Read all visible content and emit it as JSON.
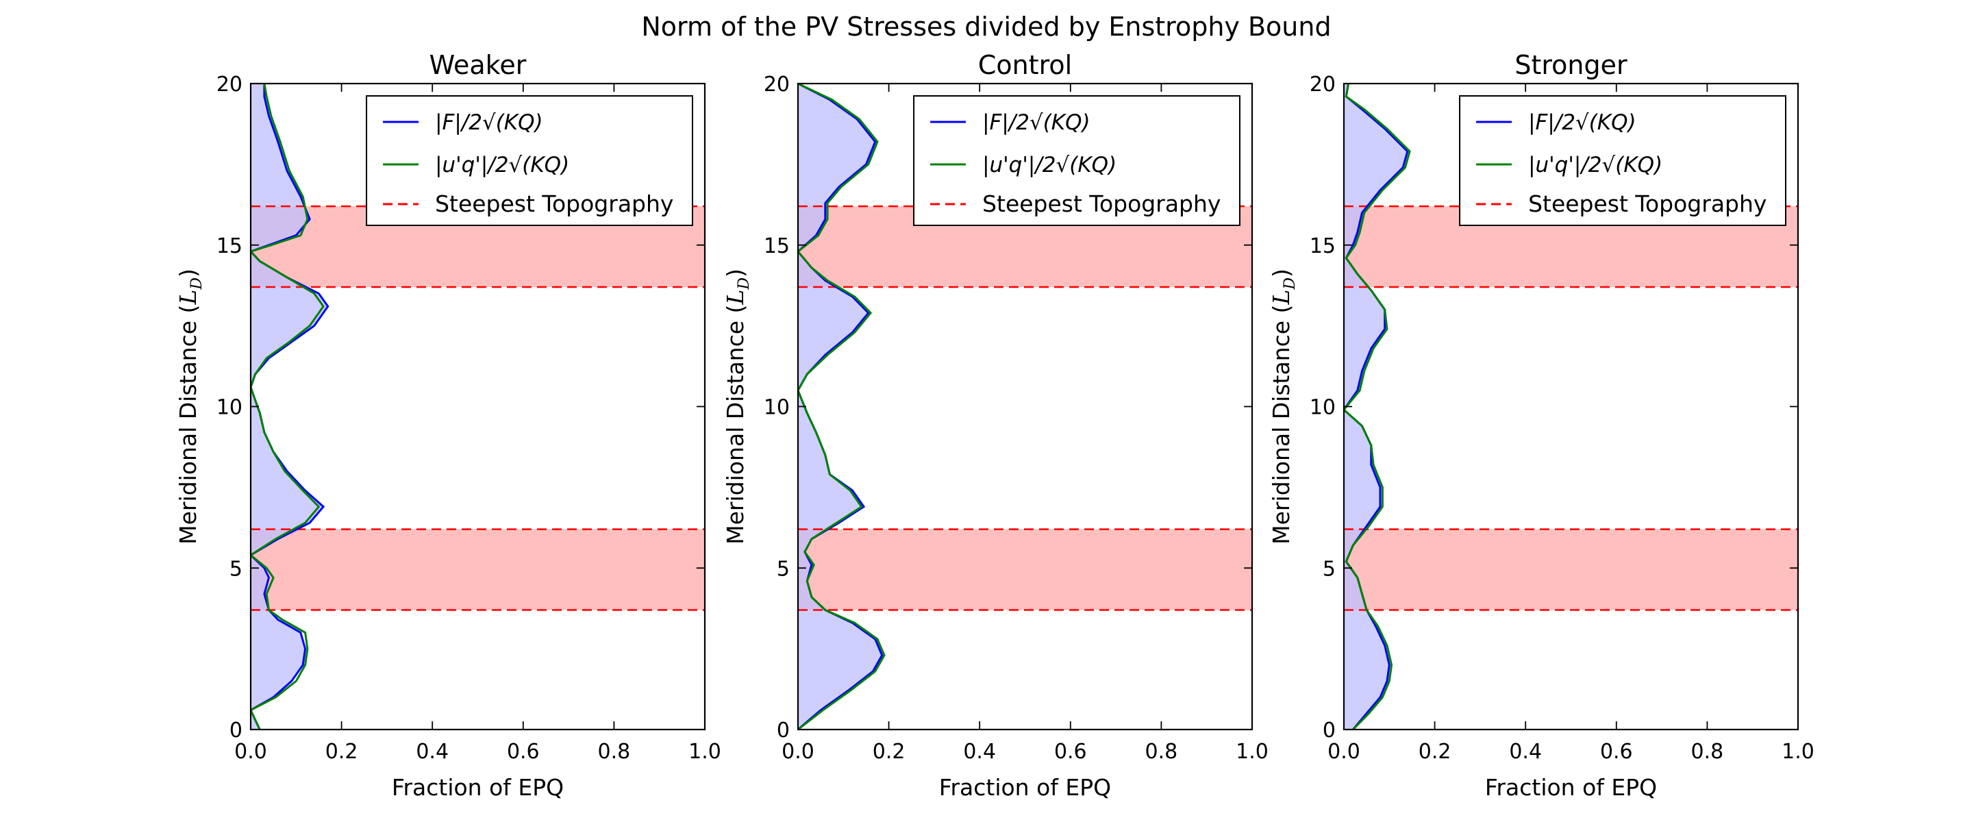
{
  "figure": {
    "suptitle": "Norm of the PV Stresses divided by Enstrophy Bound"
  },
  "colors": {
    "series_F": "#0000ff",
    "series_uq": "#008000",
    "fill_F": "#bfbfff",
    "band_fill": "#ffbfbf",
    "band_line": "#ff0000"
  },
  "chart_data": [
    {
      "type": "area",
      "title": "Weaker",
      "xlabel": "Fraction of EPQ",
      "ylabel": "Meridional Distance (L_D)",
      "ylabel_parts": {
        "main": "Meridional Distance (",
        "math": "L",
        "sub": "D",
        "close": ")"
      },
      "xlim": [
        0,
        1.0
      ],
      "ylim": [
        0,
        20
      ],
      "xticks": [
        "0.0",
        "0.2",
        "0.4",
        "0.6",
        "0.8",
        "1.0"
      ],
      "yticks": [
        "0",
        "5",
        "10",
        "15",
        "20"
      ],
      "legend": {
        "placement": "upper right",
        "entries": [
          "|F|/2√(KQ)",
          "|u'q'|/2√(KQ)",
          "Steepest Topography"
        ]
      },
      "bands": [
        [
          3.7,
          6.2
        ],
        [
          13.7,
          16.2
        ]
      ],
      "series": [
        {
          "name": "|F|/2√(KQ)",
          "points": [
            [
              0.02,
              0
            ],
            [
              0.01,
              0.3
            ],
            [
              0.0,
              0.6
            ],
            [
              0.05,
              1.0
            ],
            [
              0.09,
              1.5
            ],
            [
              0.115,
              2.0
            ],
            [
              0.12,
              2.5
            ],
            [
              0.11,
              3.0
            ],
            [
              0.06,
              3.4
            ],
            [
              0.04,
              3.7
            ],
            [
              0.03,
              4.2
            ],
            [
              0.04,
              4.7
            ],
            [
              0.03,
              5.0
            ],
            [
              0.0,
              5.4
            ],
            [
              0.06,
              5.9
            ],
            [
              0.13,
              6.4
            ],
            [
              0.16,
              6.9
            ],
            [
              0.12,
              7.4
            ],
            [
              0.08,
              8.0
            ],
            [
              0.05,
              8.6
            ],
            [
              0.03,
              9.2
            ],
            [
              0.02,
              9.8
            ],
            [
              0.01,
              10.2
            ],
            [
              0.0,
              10.6
            ],
            [
              0.01,
              11.0
            ],
            [
              0.04,
              11.5
            ],
            [
              0.09,
              12.0
            ],
            [
              0.14,
              12.5
            ],
            [
              0.17,
              13.1
            ],
            [
              0.15,
              13.5
            ],
            [
              0.08,
              14.0
            ],
            [
              0.02,
              14.5
            ],
            [
              0.0,
              14.8
            ],
            [
              0.04,
              15.0
            ],
            [
              0.1,
              15.3
            ],
            [
              0.13,
              15.8
            ],
            [
              0.11,
              16.5
            ],
            [
              0.08,
              17.3
            ],
            [
              0.06,
              18.2
            ],
            [
              0.04,
              19.0
            ],
            [
              0.03,
              19.6
            ],
            [
              0.03,
              20.0
            ]
          ]
        },
        {
          "name": "|u'q'|/2√(KQ)",
          "points": [
            [
              0.02,
              0
            ],
            [
              0.01,
              0.3
            ],
            [
              0.0,
              0.6
            ],
            [
              0.055,
              1.0
            ],
            [
              0.1,
              1.5
            ],
            [
              0.12,
              2.0
            ],
            [
              0.125,
              2.5
            ],
            [
              0.12,
              3.0
            ],
            [
              0.07,
              3.4
            ],
            [
              0.04,
              3.7
            ],
            [
              0.035,
              4.2
            ],
            [
              0.05,
              4.7
            ],
            [
              0.035,
              5.0
            ],
            [
              0.0,
              5.4
            ],
            [
              0.055,
              5.9
            ],
            [
              0.12,
              6.4
            ],
            [
              0.15,
              6.9
            ],
            [
              0.115,
              7.4
            ],
            [
              0.075,
              8.0
            ],
            [
              0.05,
              8.6
            ],
            [
              0.03,
              9.2
            ],
            [
              0.02,
              9.8
            ],
            [
              0.01,
              10.2
            ],
            [
              0.0,
              10.6
            ],
            [
              0.01,
              11.0
            ],
            [
              0.035,
              11.5
            ],
            [
              0.085,
              12.0
            ],
            [
              0.13,
              12.5
            ],
            [
              0.16,
              13.1
            ],
            [
              0.14,
              13.5
            ],
            [
              0.08,
              14.0
            ],
            [
              0.02,
              14.5
            ],
            [
              0.0,
              14.8
            ],
            [
              0.045,
              15.0
            ],
            [
              0.11,
              15.3
            ],
            [
              0.125,
              15.8
            ],
            [
              0.115,
              16.5
            ],
            [
              0.085,
              17.3
            ],
            [
              0.065,
              18.2
            ],
            [
              0.045,
              19.0
            ],
            [
              0.035,
              19.6
            ],
            [
              0.03,
              20.0
            ]
          ]
        }
      ]
    },
    {
      "type": "area",
      "title": "Control",
      "xlabel": "Fraction of EPQ",
      "ylabel": "Meridional Distance (L_D)",
      "ylabel_parts": {
        "main": "Meridional Distance (",
        "math": "L",
        "sub": "D",
        "close": ")"
      },
      "xlim": [
        0,
        1.0
      ],
      "ylim": [
        0,
        20
      ],
      "xticks": [
        "0.0",
        "0.2",
        "0.4",
        "0.6",
        "0.8",
        "1.0"
      ],
      "yticks": [
        "0",
        "5",
        "10",
        "15",
        "20"
      ],
      "legend": {
        "placement": "upper right",
        "entries": [
          "|F|/2√(KQ)",
          "|u'q'|/2√(KQ)",
          "Steepest Topography"
        ]
      },
      "bands": [
        [
          3.7,
          6.2
        ],
        [
          13.7,
          16.2
        ]
      ],
      "series": [
        {
          "name": "|F|/2√(KQ)",
          "points": [
            [
              0.0,
              0
            ],
            [
              0.05,
              0.6
            ],
            [
              0.11,
              1.2
            ],
            [
              0.165,
              1.8
            ],
            [
              0.185,
              2.3
            ],
            [
              0.17,
              2.8
            ],
            [
              0.12,
              3.3
            ],
            [
              0.06,
              3.7
            ],
            [
              0.03,
              4.1
            ],
            [
              0.02,
              4.6
            ],
            [
              0.03,
              5.1
            ],
            [
              0.015,
              5.5
            ],
            [
              0.03,
              5.9
            ],
            [
              0.09,
              6.4
            ],
            [
              0.145,
              6.9
            ],
            [
              0.12,
              7.4
            ],
            [
              0.07,
              7.9
            ],
            [
              0.06,
              8.5
            ],
            [
              0.04,
              9.2
            ],
            [
              0.02,
              9.8
            ],
            [
              0.0,
              10.5
            ],
            [
              0.02,
              11.0
            ],
            [
              0.06,
              11.6
            ],
            [
              0.12,
              12.3
            ],
            [
              0.155,
              12.9
            ],
            [
              0.12,
              13.4
            ],
            [
              0.06,
              13.9
            ],
            [
              0.03,
              14.3
            ],
            [
              0.0,
              14.8
            ],
            [
              0.04,
              15.3
            ],
            [
              0.06,
              15.8
            ],
            [
              0.06,
              16.3
            ],
            [
              0.09,
              16.8
            ],
            [
              0.15,
              17.5
            ],
            [
              0.17,
              18.2
            ],
            [
              0.13,
              18.9
            ],
            [
              0.07,
              19.5
            ],
            [
              0.0,
              20.0
            ]
          ]
        },
        {
          "name": "|u'q'|/2√(KQ)",
          "points": [
            [
              0.0,
              0
            ],
            [
              0.055,
              0.6
            ],
            [
              0.115,
              1.2
            ],
            [
              0.17,
              1.8
            ],
            [
              0.19,
              2.3
            ],
            [
              0.175,
              2.8
            ],
            [
              0.125,
              3.3
            ],
            [
              0.06,
              3.7
            ],
            [
              0.03,
              4.1
            ],
            [
              0.02,
              4.6
            ],
            [
              0.035,
              5.1
            ],
            [
              0.015,
              5.5
            ],
            [
              0.03,
              5.9
            ],
            [
              0.085,
              6.4
            ],
            [
              0.14,
              6.9
            ],
            [
              0.115,
              7.4
            ],
            [
              0.07,
              7.9
            ],
            [
              0.06,
              8.5
            ],
            [
              0.04,
              9.2
            ],
            [
              0.02,
              9.8
            ],
            [
              0.0,
              10.5
            ],
            [
              0.02,
              11.0
            ],
            [
              0.065,
              11.6
            ],
            [
              0.125,
              12.3
            ],
            [
              0.16,
              12.9
            ],
            [
              0.125,
              13.4
            ],
            [
              0.065,
              13.9
            ],
            [
              0.03,
              14.3
            ],
            [
              0.0,
              14.8
            ],
            [
              0.045,
              15.3
            ],
            [
              0.065,
              15.8
            ],
            [
              0.065,
              16.3
            ],
            [
              0.095,
              16.8
            ],
            [
              0.155,
              17.5
            ],
            [
              0.175,
              18.2
            ],
            [
              0.135,
              18.9
            ],
            [
              0.075,
              19.5
            ],
            [
              0.0,
              20.0
            ]
          ]
        }
      ]
    },
    {
      "type": "area",
      "title": "Stronger",
      "xlabel": "Fraction of EPQ",
      "ylabel": "Meridional Distance (L_D)",
      "ylabel_parts": {
        "main": "Meridional Distance (",
        "math": "L",
        "sub": "D",
        "close": ")"
      },
      "xlim": [
        0,
        1.0
      ],
      "ylim": [
        0,
        20
      ],
      "xticks": [
        "0.0",
        "0.2",
        "0.4",
        "0.6",
        "0.8",
        "1.0"
      ],
      "yticks": [
        "0",
        "5",
        "10",
        "15",
        "20"
      ],
      "legend": {
        "placement": "upper right",
        "entries": [
          "|F|/2√(KQ)",
          "|u'q'|/2√(KQ)",
          "Steepest Topography"
        ]
      },
      "bands": [
        [
          3.7,
          6.2
        ],
        [
          13.7,
          16.2
        ]
      ],
      "series": [
        {
          "name": "|F|/2√(KQ)",
          "points": [
            [
              0.02,
              0
            ],
            [
              0.05,
              0.5
            ],
            [
              0.08,
              1.0
            ],
            [
              0.095,
              1.5
            ],
            [
              0.1,
              2.0
            ],
            [
              0.09,
              2.6
            ],
            [
              0.07,
              3.2
            ],
            [
              0.05,
              3.7
            ],
            [
              0.04,
              4.2
            ],
            [
              0.03,
              4.7
            ],
            [
              0.005,
              5.2
            ],
            [
              0.02,
              5.7
            ],
            [
              0.05,
              6.3
            ],
            [
              0.08,
              6.9
            ],
            [
              0.08,
              7.5
            ],
            [
              0.06,
              8.2
            ],
            [
              0.06,
              8.8
            ],
            [
              0.04,
              9.4
            ],
            [
              0.0,
              9.9
            ],
            [
              0.03,
              10.5
            ],
            [
              0.04,
              11.1
            ],
            [
              0.06,
              11.8
            ],
            [
              0.09,
              12.4
            ],
            [
              0.09,
              13.0
            ],
            [
              0.06,
              13.6
            ],
            [
              0.03,
              14.1
            ],
            [
              0.005,
              14.6
            ],
            [
              0.02,
              15.0
            ],
            [
              0.03,
              15.4
            ],
            [
              0.04,
              16.0
            ],
            [
              0.08,
              16.7
            ],
            [
              0.13,
              17.4
            ],
            [
              0.14,
              17.9
            ],
            [
              0.09,
              18.6
            ],
            [
              0.04,
              19.2
            ],
            [
              0.005,
              19.6
            ],
            [
              0.01,
              20.0
            ]
          ]
        },
        {
          "name": "|u'q'|/2√(KQ)",
          "points": [
            [
              0.02,
              0
            ],
            [
              0.055,
              0.5
            ],
            [
              0.085,
              1.0
            ],
            [
              0.1,
              1.5
            ],
            [
              0.105,
              2.0
            ],
            [
              0.095,
              2.6
            ],
            [
              0.075,
              3.2
            ],
            [
              0.05,
              3.7
            ],
            [
              0.04,
              4.2
            ],
            [
              0.03,
              4.7
            ],
            [
              0.005,
              5.2
            ],
            [
              0.02,
              5.7
            ],
            [
              0.055,
              6.3
            ],
            [
              0.085,
              6.9
            ],
            [
              0.085,
              7.5
            ],
            [
              0.065,
              8.2
            ],
            [
              0.06,
              8.8
            ],
            [
              0.04,
              9.4
            ],
            [
              0.0,
              9.9
            ],
            [
              0.035,
              10.5
            ],
            [
              0.045,
              11.1
            ],
            [
              0.065,
              11.8
            ],
            [
              0.095,
              12.4
            ],
            [
              0.09,
              13.0
            ],
            [
              0.06,
              13.6
            ],
            [
              0.03,
              14.1
            ],
            [
              0.005,
              14.6
            ],
            [
              0.025,
              15.0
            ],
            [
              0.035,
              15.4
            ],
            [
              0.045,
              16.0
            ],
            [
              0.085,
              16.7
            ],
            [
              0.135,
              17.4
            ],
            [
              0.145,
              17.9
            ],
            [
              0.095,
              18.6
            ],
            [
              0.045,
              19.2
            ],
            [
              0.005,
              19.6
            ],
            [
              0.01,
              20.0
            ]
          ]
        }
      ]
    }
  ]
}
